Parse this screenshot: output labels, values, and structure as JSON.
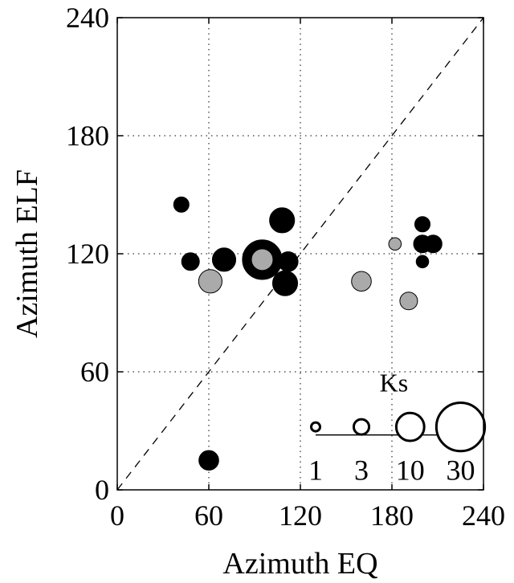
{
  "chart_data": {
    "type": "scatter",
    "title": "",
    "xlabel": "Azimuth EQ",
    "ylabel": "Azimuth ELF",
    "xlim": [
      0,
      240
    ],
    "ylim": [
      0,
      240
    ],
    "xticks": [
      "0",
      "60",
      "120",
      "180",
      "240"
    ],
    "yticks": [
      "0",
      "60",
      "120",
      "180",
      "240"
    ],
    "grid": "dotted",
    "reference_line": "y = x",
    "size_variable": "Ks",
    "colors": {
      "black": "#000000",
      "gray": "#aaaaaa"
    },
    "series": [
      {
        "group": "black",
        "points": [
          {
            "x": 42,
            "y": 145,
            "ks": 3
          },
          {
            "x": 48,
            "y": 116,
            "ks": 4
          },
          {
            "x": 60,
            "y": 15,
            "ks": 5
          },
          {
            "x": 70,
            "y": 117,
            "ks": 7
          },
          {
            "x": 95,
            "y": 117,
            "ks": 20
          },
          {
            "x": 108,
            "y": 137,
            "ks": 8
          },
          {
            "x": 112,
            "y": 116,
            "ks": 5
          },
          {
            "x": 110,
            "y": 105,
            "ks": 8
          },
          {
            "x": 200,
            "y": 135,
            "ks": 3
          },
          {
            "x": 200,
            "y": 125,
            "ks": 4
          },
          {
            "x": 207,
            "y": 125,
            "ks": 4
          },
          {
            "x": 200,
            "y": 116,
            "ks": 2
          }
        ]
      },
      {
        "group": "gray",
        "points": [
          {
            "x": 61,
            "y": 106,
            "ks": 7
          },
          {
            "x": 95,
            "y": 117,
            "ks": 6
          },
          {
            "x": 160,
            "y": 106,
            "ks": 5
          },
          {
            "x": 182,
            "y": 125,
            "ks": 2
          },
          {
            "x": 191,
            "y": 96,
            "ks": 4
          }
        ]
      }
    ],
    "size_legend": {
      "title": "Ks",
      "entries": [
        {
          "label": "1",
          "ks": 1,
          "x": 130
        },
        {
          "label": "3",
          "ks": 3,
          "x": 160
        },
        {
          "label": "10",
          "ks": 10,
          "x": 192
        },
        {
          "label": "30",
          "ks": 30,
          "x": 225
        }
      ],
      "y": 32
    }
  }
}
